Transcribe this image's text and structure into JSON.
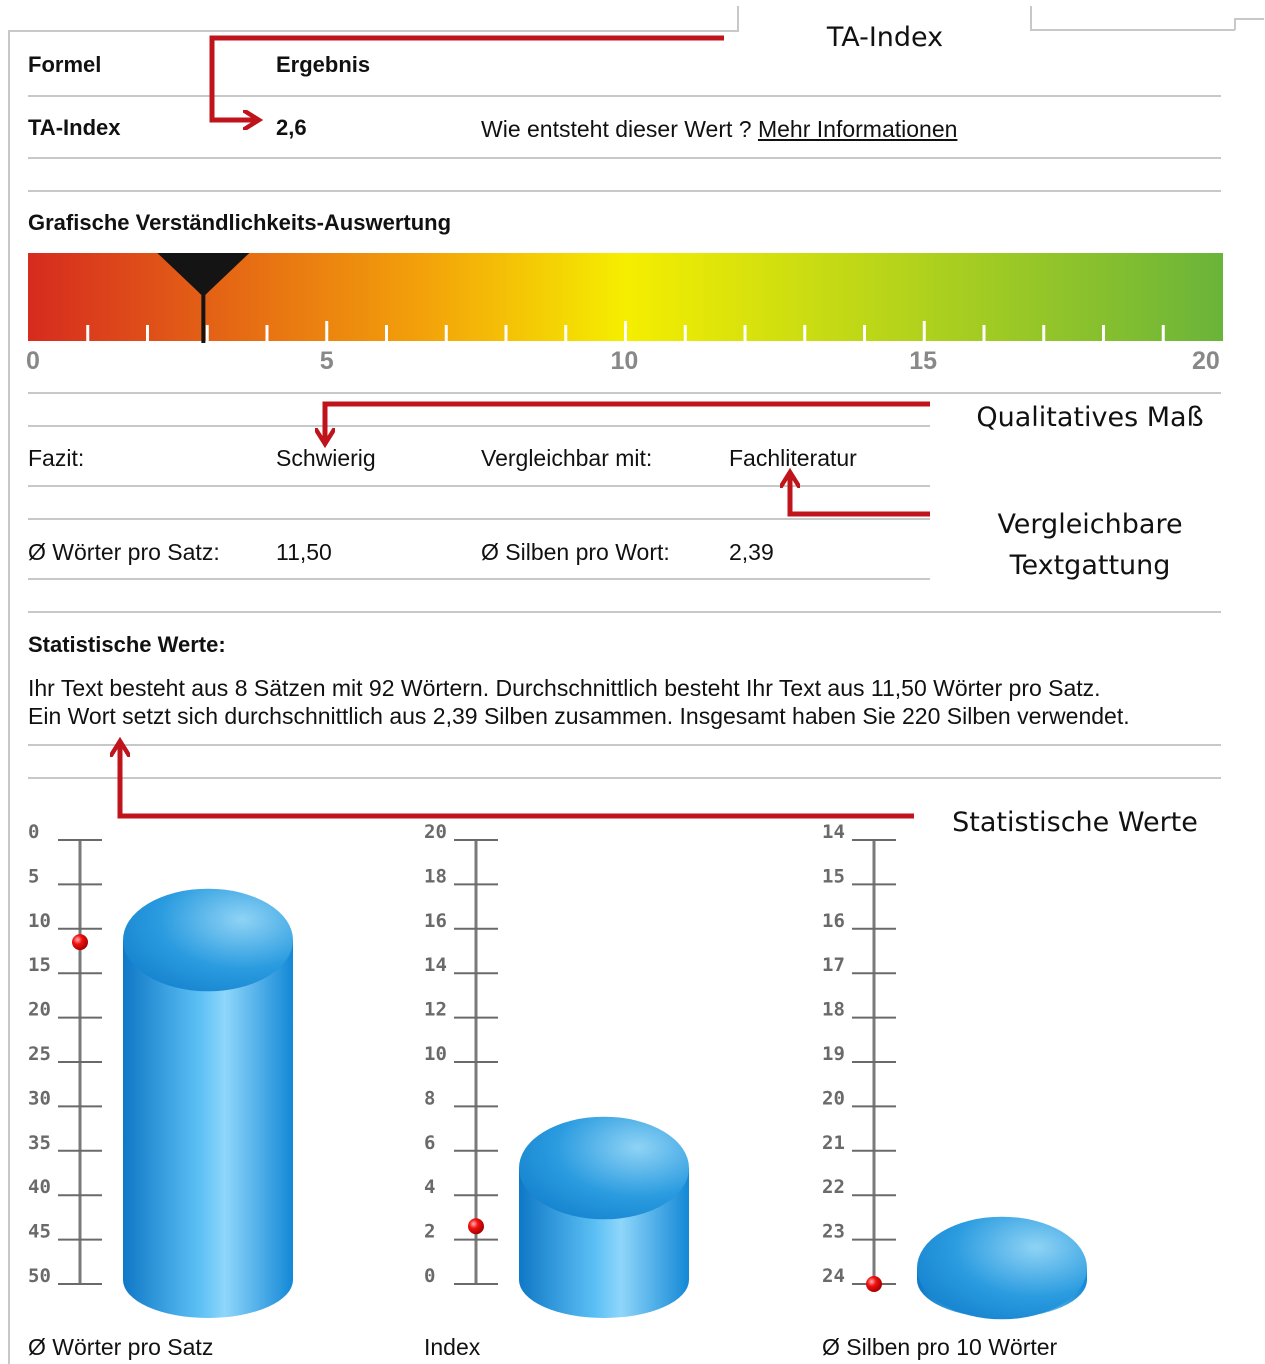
{
  "callouts": {
    "ta_index": "TA-Index",
    "qualitatives_mass": "Qualitatives Maß",
    "vergleichbare_1": "Vergleichbare",
    "vergleichbare_2": "Textgattung",
    "statistische_werte": "Statistische Werte"
  },
  "table": {
    "formel_label": "Formel",
    "ergebnis_label": "Ergebnis",
    "ta_index_label": "TA-Index",
    "ta_index_value": "2,6",
    "info_question": "Wie entsteht dieser Wert ?",
    "info_link": "Mehr Informationen"
  },
  "gauge": {
    "title": "Grafische Verständlichkeits-Auswertung",
    "min": 0,
    "max": 20,
    "value": 2.6,
    "labels": [
      "0",
      "5",
      "10",
      "15",
      "20"
    ],
    "colors": [
      "#d62b1f",
      "#f3a10a",
      "#f5ee00",
      "#6ab43a"
    ]
  },
  "fazit": {
    "label": "Fazit:",
    "value": "Schwierig",
    "vergleich_label": "Vergleichbar mit:",
    "vergleich_value": "Fachliteratur"
  },
  "averages": {
    "woerter_label": "Ø Wörter pro Satz:",
    "woerter_value": "11,50",
    "silben_label": "Ø Silben pro Wort:",
    "silben_value": "2,39"
  },
  "stats": {
    "title": "Statistische Werte:",
    "line1": "Ihr Text besteht aus 8 Sätzen mit 92 Wörtern. Durchschnittlich besteht Ihr Text aus 11,50 Wörter pro Satz.",
    "line2": "Ein Wort setzt sich durchschnittlich aus 2,39 Silben zusammen. Insgesamt haben Sie 220 Silben verwendet."
  },
  "chart_data": [
    {
      "type": "bar",
      "xlabel": "Ø Wörter pro Satz",
      "ticks": [
        "0",
        "5",
        "10",
        "15",
        "20",
        "25",
        "30",
        "35",
        "40",
        "45",
        "50"
      ],
      "ylim": [
        0,
        50
      ],
      "inverted": true,
      "value": 11.5,
      "bar_fill": 0.85,
      "color": "#1e8fd6"
    },
    {
      "type": "bar",
      "xlabel": "Index",
      "ticks": [
        "20",
        "18",
        "16",
        "14",
        "12",
        "10",
        "8",
        "6",
        "4",
        "2",
        "0"
      ],
      "ylim": [
        0,
        20
      ],
      "inverted": false,
      "value": 2.6,
      "bar_fill": 0.28,
      "color": "#1e8fd6"
    },
    {
      "type": "bar",
      "xlabel": "Ø Silben pro 10 Wörter",
      "ticks": [
        "14",
        "15",
        "16",
        "17",
        "18",
        "19",
        "20",
        "21",
        "22",
        "23",
        "24"
      ],
      "ylim": [
        14,
        24
      ],
      "inverted": true,
      "value": 24,
      "bar_fill": 0.03,
      "color": "#1e8fd6"
    }
  ]
}
